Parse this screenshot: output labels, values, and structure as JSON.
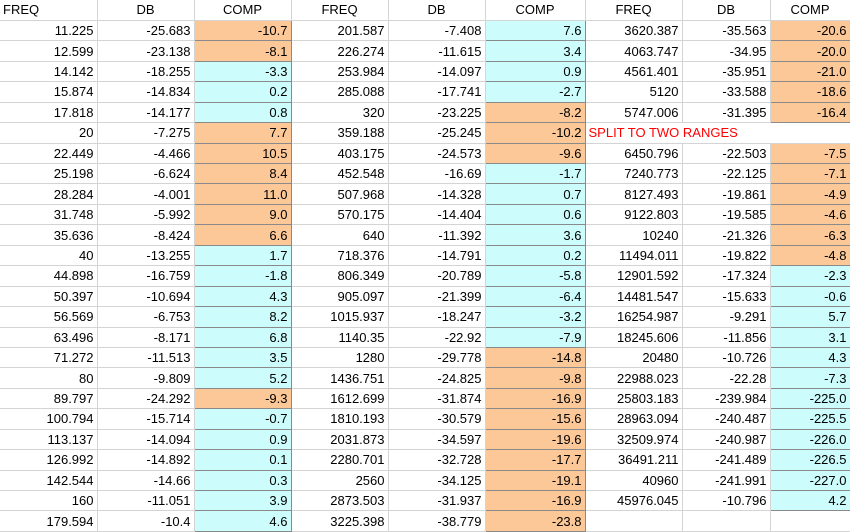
{
  "colors": {
    "orange": "#fcc898",
    "cyan": "#ccfcfc",
    "note": "#ff0000"
  },
  "headers": [
    "FREQ",
    "DB",
    "COMP",
    "FREQ",
    "DB",
    "COMP",
    "FREQ",
    "DB",
    "COMP"
  ],
  "rows": [
    [
      [
        "11.225",
        ""
      ],
      [
        "-25.683",
        ""
      ],
      [
        "-10.7",
        "o"
      ],
      [
        "201.587",
        ""
      ],
      [
        "-7.408",
        ""
      ],
      [
        "7.6",
        "c"
      ],
      [
        "3620.387",
        ""
      ],
      [
        "-35.563",
        ""
      ],
      [
        "-20.6",
        "o"
      ]
    ],
    [
      [
        "12.599",
        ""
      ],
      [
        "-23.138",
        ""
      ],
      [
        "-8.1",
        "o"
      ],
      [
        "226.274",
        ""
      ],
      [
        "-11.615",
        ""
      ],
      [
        "3.4",
        "c"
      ],
      [
        "4063.747",
        ""
      ],
      [
        "-34.95",
        ""
      ],
      [
        "-20.0",
        "o"
      ]
    ],
    [
      [
        "14.142",
        ""
      ],
      [
        "-18.255",
        ""
      ],
      [
        "-3.3",
        "c"
      ],
      [
        "253.984",
        ""
      ],
      [
        "-14.097",
        ""
      ],
      [
        "0.9",
        "c"
      ],
      [
        "4561.401",
        ""
      ],
      [
        "-35.951",
        ""
      ],
      [
        "-21.0",
        "o"
      ]
    ],
    [
      [
        "15.874",
        ""
      ],
      [
        "-14.834",
        ""
      ],
      [
        "0.2",
        "c"
      ],
      [
        "285.088",
        ""
      ],
      [
        "-17.741",
        ""
      ],
      [
        "-2.7",
        "c"
      ],
      [
        "5120",
        ""
      ],
      [
        "-33.588",
        ""
      ],
      [
        "-18.6",
        "o"
      ]
    ],
    [
      [
        "17.818",
        ""
      ],
      [
        "-14.177",
        ""
      ],
      [
        "0.8",
        "c"
      ],
      [
        "320",
        ""
      ],
      [
        "-23.225",
        ""
      ],
      [
        "-8.2",
        "o"
      ],
      [
        "5747.006",
        ""
      ],
      [
        "-31.395",
        ""
      ],
      [
        "-16.4",
        "o"
      ]
    ],
    [
      [
        "20",
        ""
      ],
      [
        "-7.275",
        ""
      ],
      [
        "7.7",
        "o"
      ],
      [
        "359.188",
        ""
      ],
      [
        "-25.245",
        ""
      ],
      [
        "-10.2",
        "o"
      ],
      [
        "SPLIT TO TWO RANGES",
        "n"
      ],
      [
        "",
        ""
      ],
      [
        "",
        ""
      ]
    ],
    [
      [
        "22.449",
        ""
      ],
      [
        "-4.466",
        ""
      ],
      [
        "10.5",
        "o"
      ],
      [
        "403.175",
        ""
      ],
      [
        "-24.573",
        ""
      ],
      [
        "-9.6",
        "o"
      ],
      [
        "6450.796",
        ""
      ],
      [
        "-22.503",
        ""
      ],
      [
        "-7.5",
        "o"
      ]
    ],
    [
      [
        "25.198",
        ""
      ],
      [
        "-6.624",
        ""
      ],
      [
        "8.4",
        "o"
      ],
      [
        "452.548",
        ""
      ],
      [
        "-16.69",
        ""
      ],
      [
        "-1.7",
        "c"
      ],
      [
        "7240.773",
        ""
      ],
      [
        "-22.125",
        ""
      ],
      [
        "-7.1",
        "o"
      ]
    ],
    [
      [
        "28.284",
        ""
      ],
      [
        "-4.001",
        ""
      ],
      [
        "11.0",
        "o"
      ],
      [
        "507.968",
        ""
      ],
      [
        "-14.328",
        ""
      ],
      [
        "0.7",
        "c"
      ],
      [
        "8127.493",
        ""
      ],
      [
        "-19.861",
        ""
      ],
      [
        "-4.9",
        "o"
      ]
    ],
    [
      [
        "31.748",
        ""
      ],
      [
        "-5.992",
        ""
      ],
      [
        "9.0",
        "o"
      ],
      [
        "570.175",
        ""
      ],
      [
        "-14.404",
        ""
      ],
      [
        "0.6",
        "c"
      ],
      [
        "9122.803",
        ""
      ],
      [
        "-19.585",
        ""
      ],
      [
        "-4.6",
        "o"
      ]
    ],
    [
      [
        "35.636",
        ""
      ],
      [
        "-8.424",
        ""
      ],
      [
        "6.6",
        "o"
      ],
      [
        "640",
        ""
      ],
      [
        "-11.392",
        ""
      ],
      [
        "3.6",
        "c"
      ],
      [
        "10240",
        ""
      ],
      [
        "-21.326",
        ""
      ],
      [
        "-6.3",
        "o"
      ]
    ],
    [
      [
        "40",
        ""
      ],
      [
        "-13.255",
        ""
      ],
      [
        "1.7",
        "c"
      ],
      [
        "718.376",
        ""
      ],
      [
        "-14.791",
        ""
      ],
      [
        "0.2",
        "c"
      ],
      [
        "11494.011",
        ""
      ],
      [
        "-19.822",
        ""
      ],
      [
        "-4.8",
        "o"
      ]
    ],
    [
      [
        "44.898",
        ""
      ],
      [
        "-16.759",
        ""
      ],
      [
        "-1.8",
        "c"
      ],
      [
        "806.349",
        ""
      ],
      [
        "-20.789",
        ""
      ],
      [
        "-5.8",
        "c"
      ],
      [
        "12901.592",
        ""
      ],
      [
        "-17.324",
        ""
      ],
      [
        "-2.3",
        "c"
      ]
    ],
    [
      [
        "50.397",
        ""
      ],
      [
        "-10.694",
        ""
      ],
      [
        "4.3",
        "c"
      ],
      [
        "905.097",
        ""
      ],
      [
        "-21.399",
        ""
      ],
      [
        "-6.4",
        "c"
      ],
      [
        "14481.547",
        ""
      ],
      [
        "-15.633",
        ""
      ],
      [
        "-0.6",
        "c"
      ]
    ],
    [
      [
        "56.569",
        ""
      ],
      [
        "-6.753",
        ""
      ],
      [
        "8.2",
        "c"
      ],
      [
        "1015.937",
        ""
      ],
      [
        "-18.247",
        ""
      ],
      [
        "-3.2",
        "c"
      ],
      [
        "16254.987",
        ""
      ],
      [
        "-9.291",
        ""
      ],
      [
        "5.7",
        "c"
      ]
    ],
    [
      [
        "63.496",
        ""
      ],
      [
        "-8.171",
        ""
      ],
      [
        "6.8",
        "c"
      ],
      [
        "1140.35",
        ""
      ],
      [
        "-22.92",
        ""
      ],
      [
        "-7.9",
        "c"
      ],
      [
        "18245.606",
        ""
      ],
      [
        "-11.856",
        ""
      ],
      [
        "3.1",
        "c"
      ]
    ],
    [
      [
        "71.272",
        ""
      ],
      [
        "-11.513",
        ""
      ],
      [
        "3.5",
        "c"
      ],
      [
        "1280",
        ""
      ],
      [
        "-29.778",
        ""
      ],
      [
        "-14.8",
        "o"
      ],
      [
        "20480",
        ""
      ],
      [
        "-10.726",
        ""
      ],
      [
        "4.3",
        "c"
      ]
    ],
    [
      [
        "80",
        ""
      ],
      [
        "-9.809",
        ""
      ],
      [
        "5.2",
        "c"
      ],
      [
        "1436.751",
        ""
      ],
      [
        "-24.825",
        ""
      ],
      [
        "-9.8",
        "o"
      ],
      [
        "22988.023",
        ""
      ],
      [
        "-22.28",
        ""
      ],
      [
        "-7.3",
        "c"
      ]
    ],
    [
      [
        "89.797",
        ""
      ],
      [
        "-24.292",
        ""
      ],
      [
        "-9.3",
        "o"
      ],
      [
        "1612.699",
        ""
      ],
      [
        "-31.874",
        ""
      ],
      [
        "-16.9",
        "o"
      ],
      [
        "25803.183",
        ""
      ],
      [
        "-239.984",
        ""
      ],
      [
        "-225.0",
        "c"
      ]
    ],
    [
      [
        "100.794",
        ""
      ],
      [
        "-15.714",
        ""
      ],
      [
        "-0.7",
        "c"
      ],
      [
        "1810.193",
        ""
      ],
      [
        "-30.579",
        ""
      ],
      [
        "-15.6",
        "o"
      ],
      [
        "28963.094",
        ""
      ],
      [
        "-240.487",
        ""
      ],
      [
        "-225.5",
        "c"
      ]
    ],
    [
      [
        "113.137",
        ""
      ],
      [
        "-14.094",
        ""
      ],
      [
        "0.9",
        "c"
      ],
      [
        "2031.873",
        ""
      ],
      [
        "-34.597",
        ""
      ],
      [
        "-19.6",
        "o"
      ],
      [
        "32509.974",
        ""
      ],
      [
        "-240.987",
        ""
      ],
      [
        "-226.0",
        "c"
      ]
    ],
    [
      [
        "126.992",
        ""
      ],
      [
        "-14.892",
        ""
      ],
      [
        "0.1",
        "c"
      ],
      [
        "2280.701",
        ""
      ],
      [
        "-32.728",
        ""
      ],
      [
        "-17.7",
        "o"
      ],
      [
        "36491.211",
        ""
      ],
      [
        "-241.489",
        ""
      ],
      [
        "-226.5",
        "c"
      ]
    ],
    [
      [
        "142.544",
        ""
      ],
      [
        "-14.66",
        ""
      ],
      [
        "0.3",
        "c"
      ],
      [
        "2560",
        ""
      ],
      [
        "-34.125",
        ""
      ],
      [
        "-19.1",
        "o"
      ],
      [
        "40960",
        ""
      ],
      [
        "-241.991",
        ""
      ],
      [
        "-227.0",
        "c"
      ]
    ],
    [
      [
        "160",
        ""
      ],
      [
        "-11.051",
        ""
      ],
      [
        "3.9",
        "c"
      ],
      [
        "2873.503",
        ""
      ],
      [
        "-31.937",
        ""
      ],
      [
        "-16.9",
        "o"
      ],
      [
        "45976.045",
        ""
      ],
      [
        "-10.796",
        ""
      ],
      [
        "4.2",
        "c"
      ]
    ],
    [
      [
        "179.594",
        ""
      ],
      [
        "-10.4",
        ""
      ],
      [
        "4.6",
        "c"
      ],
      [
        "3225.398",
        ""
      ],
      [
        "-38.779",
        ""
      ],
      [
        "-23.8",
        "o"
      ],
      [
        "",
        ""
      ],
      [
        "",
        ""
      ],
      [
        "",
        ""
      ]
    ]
  ]
}
